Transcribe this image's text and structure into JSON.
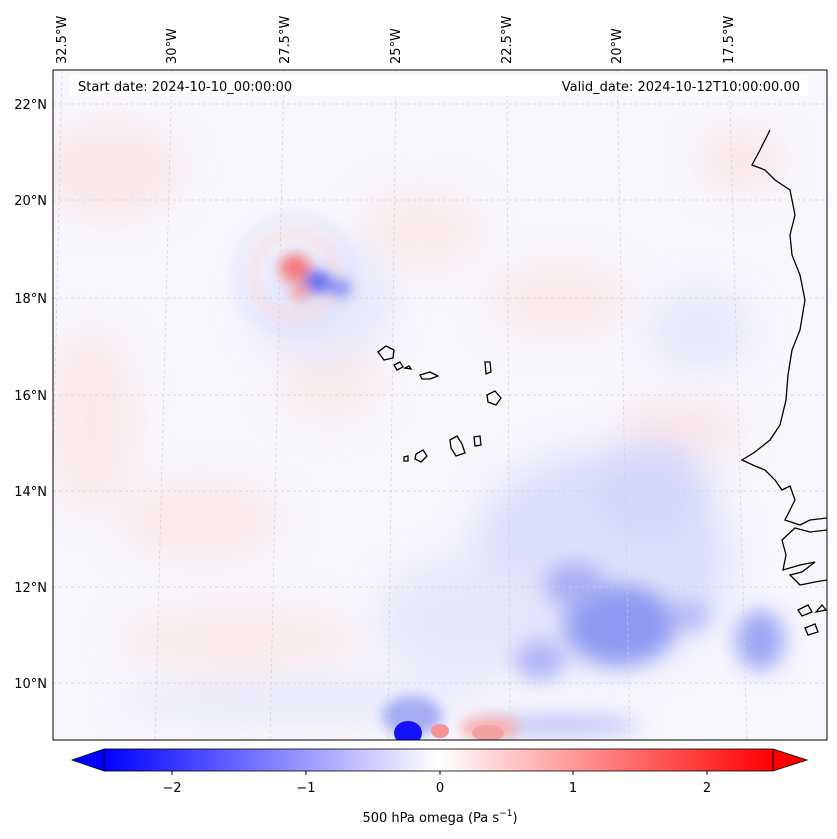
{
  "map": {
    "header_left": "Start date: 2024-10-10_00:00:00",
    "header_right": "Valid_date: 2024-10-12T10:00:00.00",
    "lon_labels": [
      "32.5°W",
      "30°W",
      "27.5°W",
      "25°W",
      "22.5°W",
      "20°W",
      "17.5°W"
    ],
    "lat_labels": [
      "22°N",
      "20°N",
      "18°N",
      "16°N",
      "14°N",
      "12°N",
      "10°N"
    ],
    "lon_range": [
      -32.5,
      -15.0
    ],
    "lat_range": [
      8.9,
      22.8
    ],
    "field": "500 hPa omega",
    "colormap": "bwr",
    "value_range": [
      -2.5,
      2.5
    ],
    "gridlines": true,
    "coastline_color": "#000000",
    "features": [
      {
        "name": "disturbance near 28°W 18.5°N",
        "lon": -27.8,
        "lat": 18.5,
        "sign": "dipole"
      },
      {
        "name": "strong descent/ascent near 24.5°W 9.2°N",
        "lon": -24.5,
        "lat": 9.2,
        "sign": "dipole"
      },
      {
        "name": "ascent region near 20°W 11–13°N",
        "lon": -20.0,
        "lat": 12.0,
        "sign": "negative"
      }
    ]
  },
  "colorbar": {
    "ticks": [
      "−2",
      "−1",
      "0",
      "1",
      "2"
    ],
    "tick_values": [
      -2,
      -1,
      0,
      1,
      2
    ],
    "min_color": "#0000ff",
    "mid_color": "#ffffff",
    "max_color": "#ff0000",
    "label_main": "500 hPa omega (Pa s",
    "label_exp": "−1",
    "label_close": ")"
  }
}
